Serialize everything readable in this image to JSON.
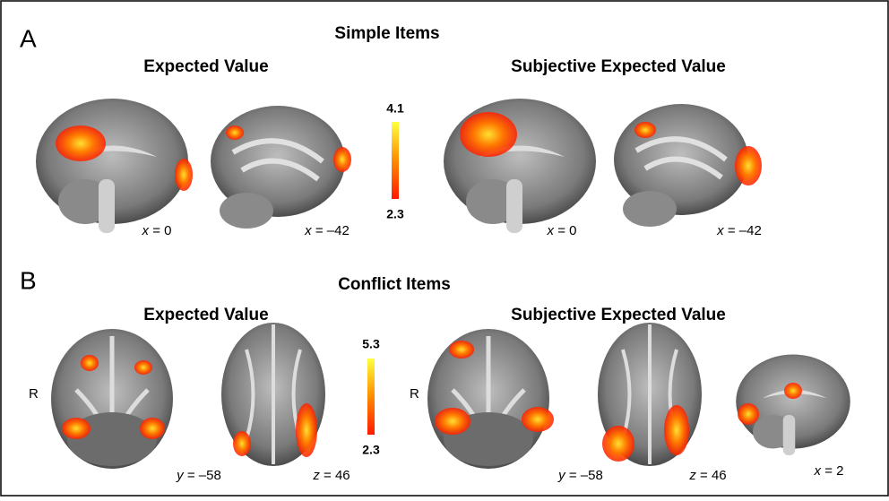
{
  "panels": [
    {
      "label": "A",
      "title": "Simple Items",
      "groups": [
        {
          "title": "Expected Value",
          "images": [
            {
              "var": "x",
              "rest": "= 0"
            },
            {
              "var": "x",
              "rest": "= –42"
            }
          ]
        },
        {
          "title": "Subjective Expected Value",
          "images": [
            {
              "var": "x",
              "rest": "= 0"
            },
            {
              "var": "x",
              "rest": "= –42"
            }
          ]
        }
      ],
      "colorbar": {
        "max": "4.1",
        "min": "2.3"
      }
    },
    {
      "label": "B",
      "title": "Conflict Items",
      "groups": [
        {
          "title": "Expected Value",
          "side": "R",
          "images": [
            {
              "var": "y",
              "rest": "= –58"
            },
            {
              "var": "z",
              "rest": "= 46"
            }
          ]
        },
        {
          "title": "Subjective Expected Value",
          "side": "R",
          "images": [
            {
              "var": "y",
              "rest": "= –58"
            },
            {
              "var": "z",
              "rest": "= 46"
            },
            {
              "var": "x",
              "rest": "= 2"
            }
          ]
        }
      ],
      "colorbar": {
        "max": "5.3",
        "min": "2.3"
      }
    }
  ]
}
